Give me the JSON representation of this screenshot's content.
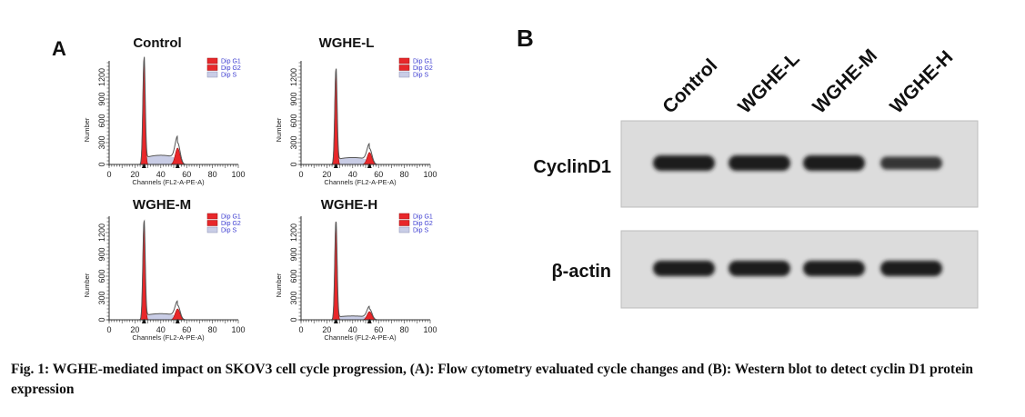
{
  "panel_a": {
    "letter": "A",
    "legend": [
      "Dip G1",
      "Dip G2",
      "Dip S"
    ],
    "x_axis_label": "Channels (FL2-A-PE-A)",
    "y_axis_label": "Number",
    "x_ticks": [
      "0",
      "20",
      "40",
      "60",
      "80",
      "100"
    ],
    "y_ticks": [
      "0",
      "300",
      "600",
      "900",
      "1200"
    ],
    "colors": {
      "g1": "#e8272a",
      "g2": "#e8272a",
      "s": "#c9cde6",
      "outline": "#555555"
    }
  },
  "panel_b": {
    "letter": "B",
    "lanes": [
      "Control",
      "WGHE-L",
      "WGHE-M",
      "WGHE-H"
    ],
    "rows": [
      "CyclinD1",
      "β-actin"
    ],
    "band_intensity": {
      "CyclinD1": [
        1.0,
        1.0,
        1.0,
        0.55
      ],
      "β-actin": [
        1.0,
        1.0,
        1.0,
        1.0
      ]
    }
  },
  "caption": "Fig. 1: WGHE-mediated impact on SKOV3 cell cycle progression, (A): Flow cytometry evaluated cycle changes and (B): Western blot to detect cyclin D1 protein expression",
  "chart_data": [
    {
      "type": "area",
      "title": "Control",
      "xlabel": "Channels (FL2-A-PE-A)",
      "ylabel": "Number",
      "xlim": [
        0,
        100
      ],
      "ylim": [
        0,
        1400
      ],
      "series": [
        {
          "name": "Dip G1",
          "peak_x": 27,
          "peak_y": 1450
        },
        {
          "name": "Dip G2",
          "peak_x": 53,
          "peak_y": 300
        },
        {
          "name": "Dip S",
          "level": 120
        }
      ]
    },
    {
      "type": "area",
      "title": "WGHE-L",
      "xlabel": "Channels (FL2-A-PE-A)",
      "ylabel": "Number",
      "xlim": [
        0,
        100
      ],
      "ylim": [
        0,
        1400
      ],
      "series": [
        {
          "name": "Dip G1",
          "peak_x": 27,
          "peak_y": 1300
        },
        {
          "name": "Dip G2",
          "peak_x": 53,
          "peak_y": 220
        },
        {
          "name": "Dip S",
          "level": 90
        }
      ]
    },
    {
      "type": "area",
      "title": "WGHE-M",
      "xlabel": "Channels (FL2-A-PE-A)",
      "ylabel": "Number",
      "xlim": [
        0,
        100
      ],
      "ylim": [
        0,
        1400
      ],
      "series": [
        {
          "name": "Dip G1",
          "peak_x": 27,
          "peak_y": 1350
        },
        {
          "name": "Dip G2",
          "peak_x": 53,
          "peak_y": 200
        },
        {
          "name": "Dip S",
          "level": 80
        }
      ]
    },
    {
      "type": "area",
      "title": "WGHE-H",
      "xlabel": "Channels (FL2-A-PE-A)",
      "ylabel": "Number",
      "xlim": [
        0,
        100
      ],
      "ylim": [
        0,
        1400
      ],
      "series": [
        {
          "name": "Dip G1",
          "peak_x": 27,
          "peak_y": 1350
        },
        {
          "name": "Dip G2",
          "peak_x": 53,
          "peak_y": 150
        },
        {
          "name": "Dip S",
          "level": 50
        }
      ]
    }
  ]
}
